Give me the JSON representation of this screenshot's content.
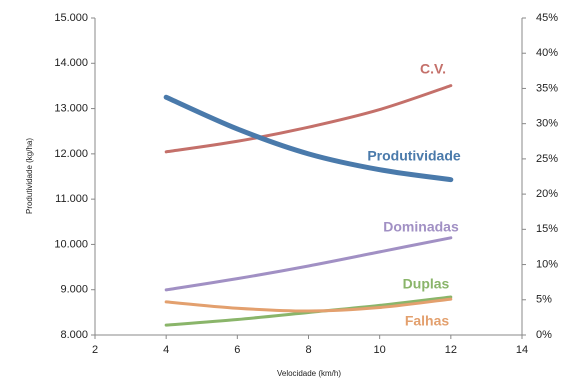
{
  "chart_data": {
    "type": "line",
    "x_label": "Velocidade (km/h)",
    "y_label": "Produtividade (kg/ha)",
    "x": [
      4,
      6,
      8,
      10,
      12
    ],
    "xlim": [
      2,
      14
    ],
    "xticks": [
      2,
      4,
      6,
      8,
      10,
      12,
      14
    ],
    "ylim": [
      8000,
      15000
    ],
    "yticks": [
      {
        "value": 8000,
        "label": "8.000"
      },
      {
        "value": 9000,
        "label": "9.000"
      },
      {
        "value": 10000,
        "label": "10.000"
      },
      {
        "value": 11000,
        "label": "11.000"
      },
      {
        "value": 12000,
        "label": "12.000"
      },
      {
        "value": 13000,
        "label": "13.000"
      },
      {
        "value": 14000,
        "label": "14.000"
      },
      {
        "value": 15000,
        "label": "15.000"
      }
    ],
    "y2lim": [
      0,
      45
    ],
    "y2ticks": [
      {
        "value": 0,
        "label": "0%"
      },
      {
        "value": 5,
        "label": "5%"
      },
      {
        "value": 10,
        "label": "10%"
      },
      {
        "value": 15,
        "label": "15%"
      },
      {
        "value": 20,
        "label": "20%"
      },
      {
        "value": 25,
        "label": "25%"
      },
      {
        "value": 30,
        "label": "30%"
      },
      {
        "value": 35,
        "label": "35%"
      },
      {
        "value": 40,
        "label": "40%"
      },
      {
        "value": 45,
        "label": "45%"
      }
    ],
    "series": [
      {
        "name": "C.V.",
        "color": "#c4706a",
        "axis": "y2",
        "values": [
          26,
          27.5,
          29.5,
          32,
          35.4
        ]
      },
      {
        "name": "Produtividade",
        "color": "#4a7aab",
        "values": [
          13250,
          12550,
          12000,
          11650,
          11430
        ]
      },
      {
        "name": "Dominadas",
        "color": "#a190c4",
        "axis": "y2",
        "values": [
          6.4,
          8,
          9.8,
          11.8,
          13.8
        ]
      },
      {
        "name": "Duplas",
        "color": "#8ab56a",
        "axis": "y2",
        "values": [
          1.4,
          2.2,
          3.2,
          4.2,
          5.4
        ]
      },
      {
        "name": "Falhas",
        "color": "#e3a06e",
        "axis": "y2",
        "values": [
          4.7,
          3.8,
          3.4,
          3.9,
          5.1
        ]
      }
    ]
  }
}
